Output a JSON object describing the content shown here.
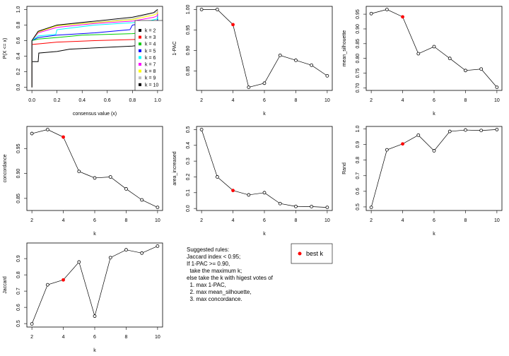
{
  "chart_data": [
    {
      "type": "line",
      "xlabel": "consensus value (x)",
      "ylabel": "P(X <= x)",
      "xlim": [
        0,
        1
      ],
      "ylim": [
        0,
        1
      ],
      "xticks": [
        "0.0",
        "0.2",
        "0.4",
        "0.6",
        "0.8",
        "1.0"
      ],
      "yticks": [
        "0.0",
        "0.2",
        "0.4",
        "0.6",
        "0.8",
        "1.0"
      ],
      "legend_position": "bottom-right",
      "series": [
        {
          "name": "k = 2",
          "color": "#000000",
          "points": [
            [
              0,
              0
            ],
            [
              0,
              0.33
            ],
            [
              0.05,
              0.33
            ],
            [
              0.055,
              0.44
            ],
            [
              0.2,
              0.46
            ],
            [
              0.3,
              0.49
            ],
            [
              0.8,
              0.53
            ],
            [
              0.95,
              0.56
            ],
            [
              1,
              0.58
            ],
            [
              1,
              1
            ]
          ]
        },
        {
          "name": "k = 3",
          "color": "#FF0000",
          "points": [
            [
              0,
              0
            ],
            [
              0,
              0.55
            ],
            [
              0.2,
              0.58
            ],
            [
              0.5,
              0.6
            ],
            [
              0.95,
              0.62
            ],
            [
              1,
              0.63
            ],
            [
              1,
              1
            ]
          ]
        },
        {
          "name": "k = 4",
          "color": "#00CD00",
          "points": [
            [
              0,
              0
            ],
            [
              0,
              0.6
            ],
            [
              0.05,
              0.62
            ],
            [
              0.2,
              0.64
            ],
            [
              0.4,
              0.67
            ],
            [
              0.8,
              0.69
            ],
            [
              0.98,
              0.72
            ],
            [
              1,
              0.73
            ],
            [
              1,
              1
            ]
          ]
        },
        {
          "name": "k = 5",
          "color": "#0000FF",
          "points": [
            [
              0,
              0
            ],
            [
              0,
              0.6
            ],
            [
              0.05,
              0.64
            ],
            [
              0.2,
              0.67
            ],
            [
              0.5,
              0.7
            ],
            [
              0.78,
              0.74
            ],
            [
              0.8,
              0.8
            ],
            [
              0.95,
              0.84
            ],
            [
              1,
              0.86
            ],
            [
              1,
              1
            ]
          ]
        },
        {
          "name": "k = 6",
          "color": "#00FFFF",
          "points": [
            [
              0,
              0
            ],
            [
              0,
              0.6
            ],
            [
              0.05,
              0.66
            ],
            [
              0.19,
              0.68
            ],
            [
              0.2,
              0.74
            ],
            [
              0.5,
              0.8
            ],
            [
              0.8,
              0.83
            ],
            [
              0.95,
              0.86
            ],
            [
              1,
              0.88
            ],
            [
              1,
              1
            ]
          ]
        },
        {
          "name": "k = 7",
          "color": "#FF00FF",
          "points": [
            [
              0,
              0
            ],
            [
              0,
              0.6
            ],
            [
              0.05,
              0.7
            ],
            [
              0.2,
              0.77
            ],
            [
              0.5,
              0.82
            ],
            [
              0.8,
              0.85
            ],
            [
              0.97,
              0.9
            ],
            [
              1,
              0.92
            ],
            [
              1,
              1
            ]
          ]
        },
        {
          "name": "k = 8",
          "color": "#FFFF00",
          "points": [
            [
              0,
              0
            ],
            [
              0,
              0.6
            ],
            [
              0.05,
              0.71
            ],
            [
              0.2,
              0.79
            ],
            [
              0.5,
              0.83
            ],
            [
              0.8,
              0.87
            ],
            [
              0.97,
              0.93
            ],
            [
              1,
              0.95
            ],
            [
              1,
              1
            ]
          ]
        },
        {
          "name": "k = 9",
          "color": "#BEBEBE",
          "points": [
            [
              0,
              0
            ],
            [
              0,
              0.6
            ],
            [
              0.05,
              0.72
            ],
            [
              0.2,
              0.8
            ],
            [
              0.5,
              0.84
            ],
            [
              0.8,
              0.88
            ],
            [
              1,
              0.97
            ],
            [
              1,
              1
            ]
          ]
        },
        {
          "name": "k = 10",
          "color": "#000000",
          "points": [
            [
              0,
              0
            ],
            [
              0,
              0.6
            ],
            [
              0.05,
              0.72
            ],
            [
              0.2,
              0.8
            ],
            [
              0.5,
              0.85
            ],
            [
              0.8,
              0.9
            ],
            [
              0.97,
              0.96
            ],
            [
              1,
              1
            ]
          ]
        }
      ]
    },
    {
      "type": "line",
      "xlabel": "k",
      "ylabel": "1-PAC",
      "x": [
        2,
        3,
        4,
        5,
        6,
        7,
        8,
        9,
        10
      ],
      "values": [
        1.0,
        1.0,
        0.963,
        0.81,
        0.82,
        0.888,
        0.876,
        0.864,
        0.838
      ],
      "xticks": [
        "2",
        "4",
        "6",
        "8",
        "10"
      ],
      "yticks": [
        "0.85",
        "0.90",
        "0.95",
        "1.00"
      ],
      "best_k": 4
    },
    {
      "type": "line",
      "xlabel": "k",
      "ylabel": "mean_silhouette",
      "x": [
        2,
        3,
        4,
        5,
        6,
        7,
        8,
        9,
        10
      ],
      "values": [
        0.952,
        0.966,
        0.941,
        0.816,
        0.84,
        0.8,
        0.759,
        0.764,
        0.702
      ],
      "xticks": [
        "2",
        "4",
        "6",
        "8",
        "10"
      ],
      "yticks": [
        "0.70",
        "0.75",
        "0.80",
        "0.85",
        "0.90",
        "0.95"
      ],
      "best_k": 4
    },
    {
      "type": "line",
      "xlabel": "k",
      "ylabel": "concordance",
      "x": [
        2,
        3,
        4,
        5,
        6,
        7,
        8,
        9,
        10
      ],
      "values": [
        0.98,
        0.988,
        0.973,
        0.904,
        0.891,
        0.893,
        0.869,
        0.847,
        0.832
      ],
      "xticks": [
        "2",
        "4",
        "6",
        "8",
        "10"
      ],
      "yticks": [
        "0.85",
        "0.90",
        "0.95"
      ],
      "best_k": 4
    },
    {
      "type": "line",
      "xlabel": "k",
      "ylabel": "area_increased",
      "x": [
        2,
        3,
        4,
        5,
        6,
        7,
        8,
        9,
        10
      ],
      "values": [
        0.5,
        0.2,
        0.114,
        0.086,
        0.1,
        0.031,
        0.013,
        0.012,
        0.007
      ],
      "xticks": [
        "2",
        "4",
        "6",
        "8",
        "10"
      ],
      "yticks": [
        "0.0",
        "0.1",
        "0.2",
        "0.3",
        "0.4",
        "0.5"
      ],
      "best_k": 4
    },
    {
      "type": "line",
      "xlabel": "k",
      "ylabel": "Rand",
      "x": [
        2,
        3,
        4,
        5,
        6,
        7,
        8,
        9,
        10
      ],
      "values": [
        0.497,
        0.866,
        0.904,
        0.96,
        0.86,
        0.984,
        0.993,
        0.99,
        0.996
      ],
      "xticks": [
        "2",
        "4",
        "6",
        "8",
        "10"
      ],
      "yticks": [
        "0.5",
        "0.6",
        "0.7",
        "0.8",
        "0.9",
        "1.0"
      ],
      "best_k": 4
    },
    {
      "type": "line",
      "xlabel": "k",
      "ylabel": "Jaccard",
      "x": [
        2,
        3,
        4,
        5,
        6,
        7,
        8,
        9,
        10
      ],
      "values": [
        0.498,
        0.739,
        0.769,
        0.879,
        0.546,
        0.906,
        0.954,
        0.934,
        0.977
      ],
      "xticks": [
        "2",
        "4",
        "6",
        "8",
        "10"
      ],
      "yticks": [
        "0.5",
        "0.6",
        "0.7",
        "0.8",
        "0.9"
      ],
      "best_k": 4
    }
  ],
  "best_k_color": "#FF0000",
  "rules": {
    "lines": [
      "Suggested rules:",
      "Jaccard index < 0.95;",
      "If 1-PAC >= 0.90,",
      "  take the maximum k;",
      "else take the k with higest votes of",
      "  1. max 1-PAC,",
      "  2. max mean_silhouette,",
      "  3. max concordance."
    ],
    "legend_label": "best k"
  }
}
